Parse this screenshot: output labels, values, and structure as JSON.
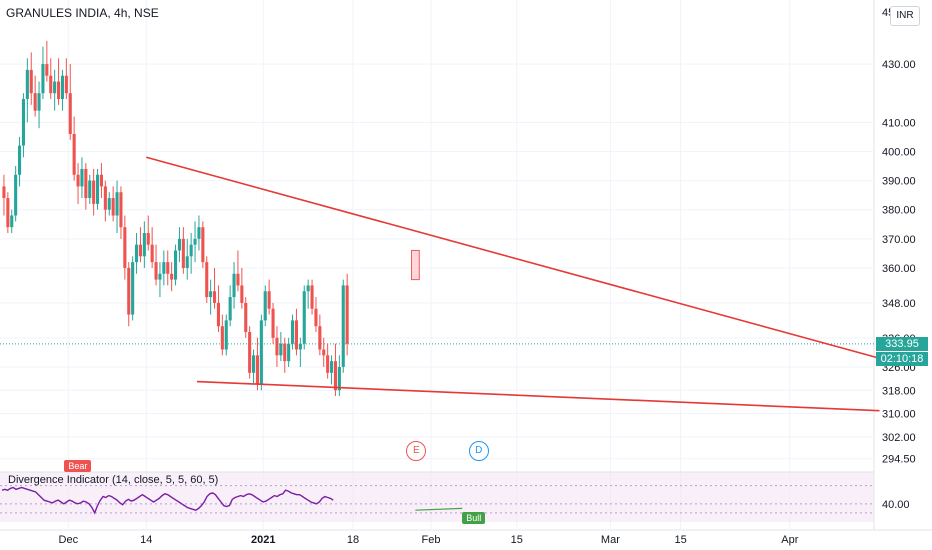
{
  "header": {
    "title": "GRANULES INDIA, 4h, NSE"
  },
  "currency_button": {
    "label": "INR"
  },
  "price_axis": {
    "top_partial": "450",
    "ticks": [
      {
        "label": "430.00",
        "value": 430
      },
      {
        "label": "410.00",
        "value": 410
      },
      {
        "label": "400.00",
        "value": 400
      },
      {
        "label": "390.00",
        "value": 390
      },
      {
        "label": "380.00",
        "value": 380
      },
      {
        "label": "370.00",
        "value": 370
      },
      {
        "label": "360.00",
        "value": 360
      },
      {
        "label": "348.00",
        "value": 348
      },
      {
        "label": "336.00",
        "value": 336
      },
      {
        "label": "326.00",
        "value": 326
      },
      {
        "label": "318.00",
        "value": 318
      },
      {
        "label": "310.00",
        "value": 310
      },
      {
        "label": "302.00",
        "value": 302
      },
      {
        "label": "294.50",
        "value": 294.5
      }
    ]
  },
  "last_price": {
    "label": "333.95",
    "value": 333.95,
    "color": "#26a69a"
  },
  "countdown": {
    "label": "02:10:18",
    "color": "#26a69a"
  },
  "time_axis": {
    "labels": [
      {
        "label": "Dec",
        "bar": 17,
        "bold": false
      },
      {
        "label": "14",
        "bar": 37,
        "bold": false
      },
      {
        "label": "2021",
        "bar": 67,
        "bold": true
      },
      {
        "label": "18",
        "bar": 90,
        "bold": false
      },
      {
        "label": "Feb",
        "bar": 110,
        "bold": false
      },
      {
        "label": "15",
        "bar": 132,
        "bold": false
      },
      {
        "label": "Mar",
        "bar": 156,
        "bold": false
      },
      {
        "label": "15",
        "bar": 174,
        "bold": false
      },
      {
        "label": "Apr",
        "bar": 202,
        "bold": false
      }
    ]
  },
  "events": [
    {
      "label": "E",
      "bar": 106,
      "color": "#ef5350"
    },
    {
      "label": "D",
      "bar": 122,
      "color": "#2196f3"
    }
  ],
  "indicator": {
    "label": "Divergence Indicator (14, close, 5, 5, 60, 5)",
    "axis_label": "40.00",
    "axis_value": 40,
    "bear_tag": "Bear",
    "bull_tag": "Bull",
    "line_color": "#7b1fa2"
  },
  "colors": {
    "up": "#26a69a",
    "down": "#ef5350",
    "trend": "#e53935",
    "grid": "#f0f3fa"
  },
  "chart_data": {
    "type": "candlestick",
    "ohlc": [
      [
        388,
        392,
        378,
        384
      ],
      [
        384,
        386,
        372,
        374
      ],
      [
        374,
        380,
        372,
        378
      ],
      [
        378,
        395,
        376,
        392
      ],
      [
        392,
        405,
        388,
        402
      ],
      [
        402,
        420,
        398,
        418
      ],
      [
        418,
        432,
        410,
        428
      ],
      [
        428,
        434,
        416,
        420
      ],
      [
        420,
        426,
        412,
        414
      ],
      [
        414,
        424,
        408,
        420
      ],
      [
        420,
        436,
        418,
        430
      ],
      [
        430,
        438,
        424,
        426
      ],
      [
        426,
        432,
        418,
        420
      ],
      [
        420,
        428,
        414,
        424
      ],
      [
        424,
        432,
        416,
        418
      ],
      [
        418,
        428,
        414,
        426
      ],
      [
        426,
        432,
        418,
        420
      ],
      [
        420,
        430,
        404,
        406
      ],
      [
        406,
        412,
        390,
        392
      ],
      [
        392,
        396,
        382,
        388
      ],
      [
        388,
        398,
        384,
        394
      ],
      [
        394,
        396,
        380,
        384
      ],
      [
        384,
        392,
        382,
        390
      ],
      [
        390,
        394,
        378,
        382
      ],
      [
        382,
        394,
        380,
        392
      ],
      [
        392,
        396,
        384,
        388
      ],
      [
        388,
        390,
        376,
        380
      ],
      [
        380,
        386,
        378,
        384
      ],
      [
        384,
        388,
        376,
        378
      ],
      [
        378,
        390,
        372,
        386
      ],
      [
        386,
        388,
        370,
        374
      ],
      [
        374,
        378,
        356,
        360
      ],
      [
        360,
        362,
        340,
        344
      ],
      [
        344,
        364,
        342,
        362
      ],
      [
        362,
        372,
        358,
        368
      ],
      [
        368,
        374,
        362,
        364
      ],
      [
        364,
        376,
        360,
        372
      ],
      [
        372,
        378,
        366,
        368
      ],
      [
        368,
        374,
        360,
        362
      ],
      [
        362,
        368,
        354,
        356
      ],
      [
        356,
        362,
        350,
        358
      ],
      [
        358,
        366,
        354,
        362
      ],
      [
        362,
        366,
        354,
        358
      ],
      [
        358,
        362,
        352,
        356
      ],
      [
        356,
        368,
        354,
        366
      ],
      [
        366,
        374,
        362,
        370
      ],
      [
        370,
        374,
        358,
        360
      ],
      [
        360,
        370,
        356,
        364
      ],
      [
        364,
        372,
        358,
        368
      ],
      [
        368,
        376,
        362,
        370
      ],
      [
        370,
        378,
        366,
        374
      ],
      [
        374,
        376,
        360,
        362
      ],
      [
        362,
        364,
        348,
        350
      ],
      [
        350,
        356,
        344,
        352
      ],
      [
        352,
        360,
        346,
        348
      ],
      [
        348,
        354,
        338,
        340
      ],
      [
        340,
        344,
        330,
        332
      ],
      [
        332,
        344,
        330,
        342
      ],
      [
        342,
        354,
        340,
        350
      ],
      [
        350,
        362,
        346,
        358
      ],
      [
        358,
        366,
        352,
        354
      ],
      [
        354,
        360,
        346,
        348
      ],
      [
        348,
        350,
        336,
        338
      ],
      [
        338,
        340,
        322,
        324
      ],
      [
        324,
        332,
        320,
        330
      ],
      [
        330,
        336,
        318,
        320
      ],
      [
        320,
        344,
        318,
        342
      ],
      [
        342,
        354,
        340,
        352
      ],
      [
        352,
        356,
        344,
        346
      ],
      [
        346,
        348,
        334,
        336
      ],
      [
        336,
        340,
        326,
        330
      ],
      [
        330,
        338,
        328,
        334
      ],
      [
        334,
        336,
        324,
        328
      ],
      [
        328,
        336,
        326,
        334
      ],
      [
        334,
        344,
        332,
        342
      ],
      [
        342,
        346,
        330,
        332
      ],
      [
        332,
        336,
        326,
        334
      ],
      [
        334,
        354,
        332,
        352
      ],
      [
        352,
        356,
        346,
        354
      ],
      [
        354,
        356,
        344,
        346
      ],
      [
        346,
        350,
        338,
        340
      ],
      [
        340,
        344,
        330,
        332
      ],
      [
        332,
        336,
        326,
        330
      ],
      [
        330,
        334,
        322,
        324
      ],
      [
        324,
        330,
        320,
        328
      ],
      [
        328,
        334,
        316,
        318
      ],
      [
        318,
        330,
        316,
        326
      ],
      [
        326,
        356,
        324,
        354
      ],
      [
        354,
        358,
        330,
        334
      ]
    ],
    "upper_trendline": [
      [
        37,
        398
      ],
      [
        225,
        329
      ]
    ],
    "lower_trendline": [
      [
        50,
        321
      ],
      [
        225,
        311
      ]
    ],
    "highlight_box": {
      "bar_start": 105,
      "bar_end": 107,
      "low": 356,
      "high": 366
    },
    "divergence_oscillator": {
      "start_bar": 0,
      "values": [
        55,
        56,
        55,
        57,
        58,
        56,
        57,
        58,
        57,
        56,
        55,
        54,
        53,
        50,
        47,
        44,
        43,
        42,
        41,
        43,
        44,
        42,
        40,
        42,
        44,
        43,
        41,
        40,
        41,
        43,
        42,
        40,
        36,
        30,
        38,
        44,
        48,
        47,
        49,
        48,
        46,
        44,
        41,
        39,
        43,
        45,
        43,
        44,
        46,
        48,
        50,
        48,
        46,
        44,
        42,
        44,
        46,
        49,
        51,
        50,
        48,
        46,
        44,
        42,
        40,
        38,
        36,
        35,
        34,
        33,
        35,
        38,
        42,
        48,
        51,
        52,
        50,
        46,
        42,
        38,
        37,
        38,
        45,
        47,
        48,
        49,
        48,
        50,
        51,
        50,
        48,
        46,
        44,
        42,
        43,
        45,
        47,
        49,
        48,
        50,
        51,
        55,
        54,
        52,
        51,
        50,
        50,
        48,
        46,
        44,
        42,
        41,
        40,
        42,
        46,
        48,
        47,
        46,
        44
      ]
    },
    "oscillator_range": [
      20,
      75
    ],
    "price_range": [
      292,
      452
    ],
    "total_bars": 225
  }
}
